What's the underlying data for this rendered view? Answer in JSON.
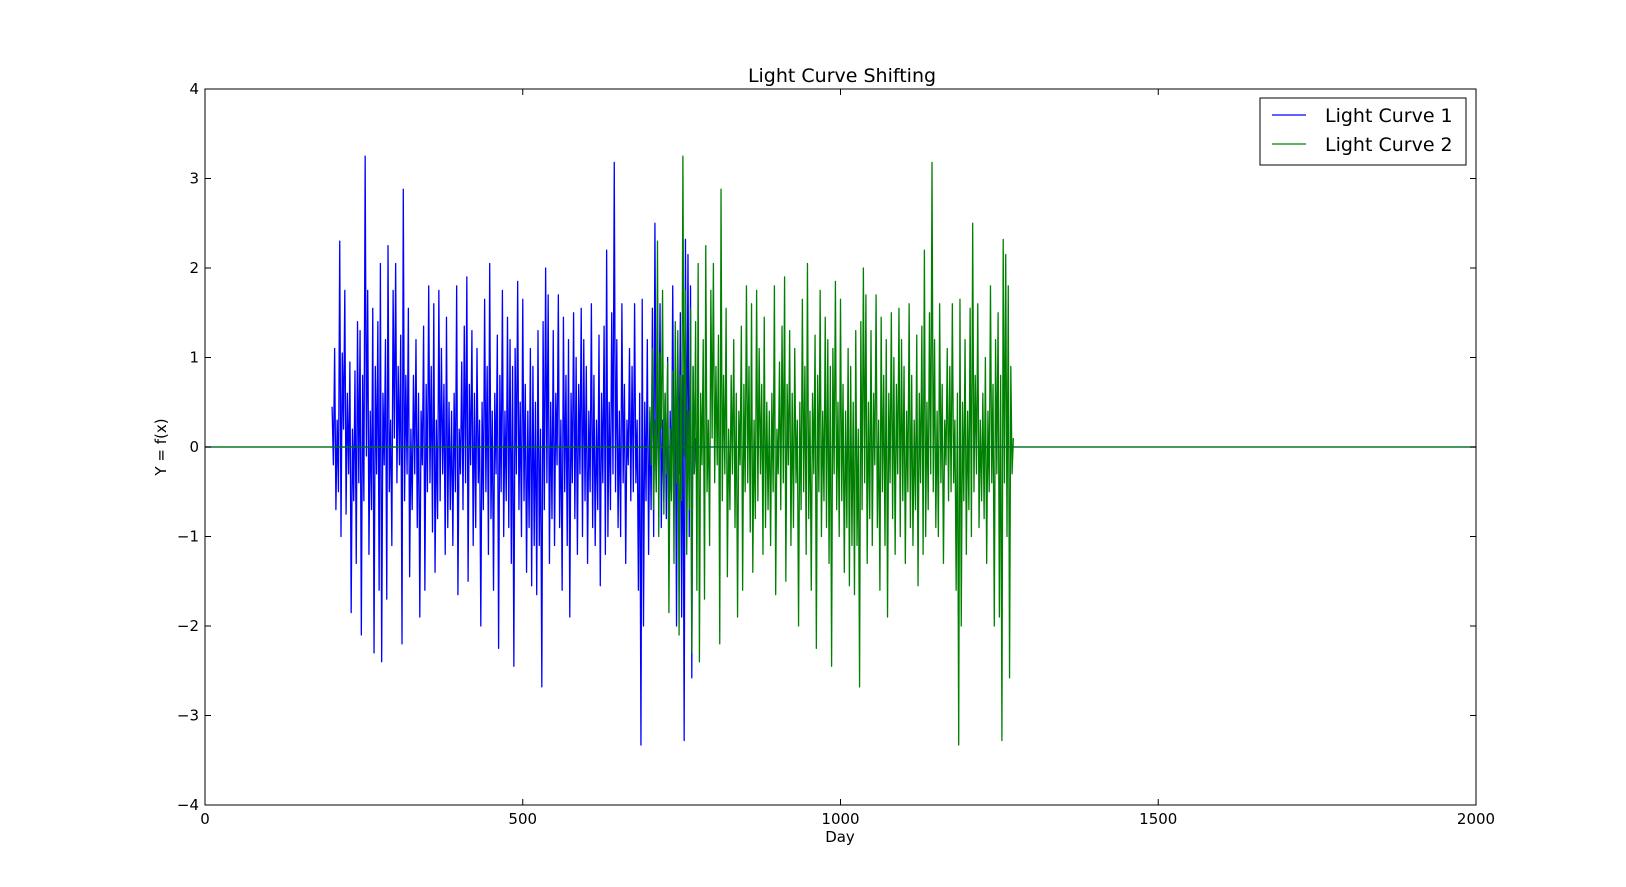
{
  "chart_data": {
    "type": "line",
    "title": "Light Curve Shifting",
    "xlabel": "Day",
    "ylabel": "Y = f(x)",
    "xlim": [
      0,
      2000
    ],
    "ylim": [
      -4,
      4
    ],
    "xticks": [
      0,
      500,
      1000,
      1500,
      2000
    ],
    "yticks": [
      -4,
      -3,
      -2,
      -1,
      0,
      1,
      2,
      3,
      4
    ],
    "xtick_labels": [
      "0",
      "500",
      "1000",
      "1500",
      "2000"
    ],
    "ytick_labels": [
      "−4",
      "−3",
      "−2",
      "−1",
      "0",
      "1",
      "2",
      "3",
      "4"
    ],
    "grid": false,
    "legend_position": "top-right",
    "series": [
      {
        "name": "Light Curve 1",
        "color": "#0000ff",
        "x_start": 200,
        "x_step": 2,
        "y": [
          0.45,
          -0.2,
          1.1,
          -0.7,
          0.3,
          -0.5,
          2.3,
          -1.0,
          1.05,
          0.2,
          1.75,
          -0.75,
          0.6,
          -0.3,
          0.95,
          -1.85,
          0.2,
          -0.6,
          0.85,
          -1.3,
          1.4,
          -0.4,
          1.3,
          -2.1,
          0.8,
          -0.6,
          3.25,
          -0.1,
          1.75,
          -1.2,
          0.4,
          -0.7,
          1.55,
          -2.3,
          0.9,
          -0.3,
          1.4,
          -1.6,
          2.05,
          -2.4,
          0.6,
          -0.2,
          1.2,
          -1.7,
          2.25,
          -0.5,
          0.3,
          -1.1,
          1.75,
          0.1,
          2.05,
          -0.4,
          0.9,
          -0.2,
          1.25,
          -2.2,
          2.88,
          -0.6,
          0.8,
          -0.3,
          1.55,
          -1.45,
          0.2,
          -0.7,
          0.8,
          -0.3,
          1.2,
          -0.9,
          0.6,
          -1.9,
          0.4,
          -0.2,
          1.35,
          -1.6,
          0.7,
          -0.5,
          1.8,
          -0.4,
          0.9,
          -0.95,
          1.6,
          -1.4,
          0.3,
          -0.8,
          1.75,
          -0.6,
          1.1,
          -0.3,
          0.7,
          -1.2,
          1.45,
          -0.9,
          0.5,
          -0.7,
          0.4,
          -1.1,
          0.6,
          -0.5,
          1.8,
          -1.65,
          0.2,
          -0.3,
          0.95,
          -0.7,
          1.35,
          -0.4,
          1.9,
          -1.5,
          0.7,
          -0.2,
          1.3,
          -1.1,
          0.6,
          -0.9,
          1.1,
          -0.4,
          0.3,
          -2.0,
          0.5,
          -0.7,
          1.65,
          -0.5,
          0.9,
          -1.2,
          2.05,
          -0.8,
          0.4,
          -1.6,
          0.6,
          -0.3,
          1.25,
          -2.25,
          0.8,
          -0.5,
          1.75,
          -1.0,
          0.4,
          -0.6,
          1.45,
          -0.9,
          1.2,
          -1.3,
          0.9,
          -2.45,
          1.1,
          -0.3,
          1.85,
          -0.7,
          0.5,
          -1.0,
          1.65,
          -0.6,
          0.7,
          -1.4,
          0.4,
          -0.9,
          1.1,
          -1.55,
          0.9,
          -1.1,
          0.5,
          -1.65,
          1.3,
          -1.1,
          0.2,
          -2.68,
          1.4,
          -0.7,
          2.0,
          -0.4,
          1.7,
          -1.3,
          0.5,
          -0.8,
          1.3,
          -1.1,
          0.6,
          -0.2,
          1.7,
          -0.9,
          0.3,
          -1.6,
          1.45,
          -0.5,
          0.8,
          -1.1,
          1.2,
          -1.9,
          0.6,
          -0.4,
          1.5,
          -0.8,
          1.0,
          -1.2,
          0.7,
          -0.3,
          1.55,
          -1.0,
          1.2,
          -0.6,
          0.9,
          -1.3,
          0.4,
          -0.5,
          1.6,
          -0.9,
          0.8,
          -1.1,
          0.3,
          -0.7,
          1.25,
          -1.55,
          0.6,
          -0.4,
          1.35,
          -1.2,
          2.2,
          -1.0,
          0.5,
          -0.7,
          1.5,
          -0.3,
          3.18,
          -0.5,
          1.2,
          -0.9,
          0.4,
          -1.0,
          1.6,
          -0.4,
          0.7,
          -1.3,
          0.3,
          -0.2,
          1.1,
          -0.6,
          0.9,
          -0.5,
          1.6,
          -0.4,
          0.3,
          -1.6,
          0.6,
          -3.33,
          1.65,
          -2.0,
          0.5,
          -0.6,
          1.2,
          -1.2,
          0.4,
          -0.7,
          1.55,
          -1.0,
          2.5,
          -0.5,
          0.8,
          -0.3,
          1.6,
          -0.9,
          0.3,
          -0.6,
          0.6,
          -0.8,
          1.0,
          -1.3,
          0.4,
          -0.5,
          1.8,
          -0.4,
          0.7,
          -2.0,
          1.2,
          -0.3,
          1.5,
          -1.9,
          0.8,
          -3.28,
          2.32,
          -0.4,
          2.15,
          -1.0,
          1.8,
          -2.58,
          0.9,
          -0.3,
          0.1
        ]
      },
      {
        "name": "Light Curve 2",
        "color": "#008000",
        "x_start": 700,
        "x_step": 2,
        "y": [
          0.45,
          -0.2,
          1.1,
          -0.7,
          0.3,
          -0.5,
          2.3,
          -1.0,
          1.05,
          0.2,
          1.75,
          -0.75,
          0.6,
          -0.3,
          0.95,
          -1.85,
          0.2,
          -0.6,
          0.85,
          -1.3,
          1.4,
          -0.4,
          1.3,
          -2.1,
          0.8,
          -0.6,
          3.25,
          -0.1,
          1.75,
          -1.2,
          0.4,
          -0.7,
          1.55,
          -2.3,
          0.9,
          -0.3,
          1.4,
          -1.6,
          2.05,
          -2.4,
          0.6,
          -0.2,
          1.2,
          -1.7,
          2.25,
          -0.5,
          0.3,
          -1.1,
          1.75,
          0.1,
          2.05,
          -0.4,
          0.9,
          -0.2,
          1.25,
          -2.2,
          2.88,
          -0.6,
          0.8,
          -0.3,
          1.55,
          -1.45,
          0.2,
          -0.7,
          0.8,
          -0.3,
          1.2,
          -0.9,
          0.6,
          -1.9,
          0.4,
          -0.2,
          1.35,
          -1.6,
          0.7,
          -0.5,
          1.8,
          -0.4,
          0.9,
          -0.95,
          1.6,
          -1.4,
          0.3,
          -0.8,
          1.75,
          -0.6,
          1.1,
          -0.3,
          0.7,
          -1.2,
          1.45,
          -0.9,
          0.5,
          -0.7,
          0.4,
          -1.1,
          0.6,
          -0.5,
          1.8,
          -1.65,
          0.2,
          -0.3,
          0.95,
          -0.7,
          1.35,
          -0.4,
          1.9,
          -1.5,
          0.7,
          -0.2,
          1.3,
          -1.1,
          0.6,
          -0.9,
          1.1,
          -0.4,
          0.3,
          -2.0,
          0.5,
          -0.7,
          1.65,
          -0.5,
          0.9,
          -1.2,
          2.05,
          -0.8,
          0.4,
          -1.6,
          0.6,
          -0.3,
          1.25,
          -2.25,
          0.8,
          -0.5,
          1.75,
          -1.0,
          0.4,
          -0.6,
          1.45,
          -0.9,
          1.2,
          -1.3,
          0.9,
          -2.45,
          1.1,
          -0.3,
          1.85,
          -0.7,
          0.5,
          -1.0,
          1.65,
          -0.6,
          0.7,
          -1.4,
          0.4,
          -0.9,
          1.1,
          -1.55,
          0.9,
          -1.1,
          0.5,
          -1.65,
          1.3,
          -1.1,
          0.2,
          -2.68,
          1.4,
          -0.7,
          2.0,
          -0.4,
          1.7,
          -1.3,
          0.5,
          -0.8,
          1.3,
          -1.1,
          0.6,
          -0.2,
          1.7,
          -0.9,
          0.3,
          -1.6,
          1.45,
          -0.5,
          0.8,
          -1.1,
          1.2,
          -1.9,
          0.6,
          -0.4,
          1.5,
          -0.8,
          1.0,
          -1.2,
          0.7,
          -0.3,
          1.55,
          -1.0,
          1.2,
          -0.6,
          0.9,
          -1.3,
          0.4,
          -0.5,
          1.6,
          -0.9,
          0.8,
          -1.1,
          0.3,
          -0.7,
          1.25,
          -1.55,
          0.6,
          -0.4,
          1.35,
          -1.2,
          2.2,
          -1.0,
          0.5,
          -0.7,
          1.5,
          -0.3,
          3.18,
          -0.5,
          1.2,
          -0.9,
          0.4,
          -1.0,
          1.6,
          -0.4,
          0.7,
          -1.3,
          0.3,
          -0.2,
          1.1,
          -0.6,
          0.9,
          -0.5,
          1.6,
          -0.4,
          0.3,
          -1.6,
          0.6,
          -3.33,
          1.65,
          -2.0,
          0.5,
          -0.6,
          1.2,
          -1.2,
          0.4,
          -0.7,
          1.55,
          -1.0,
          2.5,
          -0.5,
          0.8,
          -0.3,
          1.6,
          -0.9,
          0.3,
          -0.6,
          0.6,
          -0.8,
          1.0,
          -1.3,
          0.4,
          -0.5,
          1.8,
          -0.4,
          0.7,
          -2.0,
          1.2,
          -0.3,
          1.5,
          -1.9,
          0.8,
          -3.28,
          2.32,
          -0.4,
          2.15,
          -1.0,
          1.8,
          -2.58,
          0.9,
          -0.3,
          0.1
        ]
      }
    ],
    "baselines": [
      {
        "color": "#0000ff",
        "y": 0
      },
      {
        "color": "#008000",
        "y": 0
      }
    ]
  }
}
